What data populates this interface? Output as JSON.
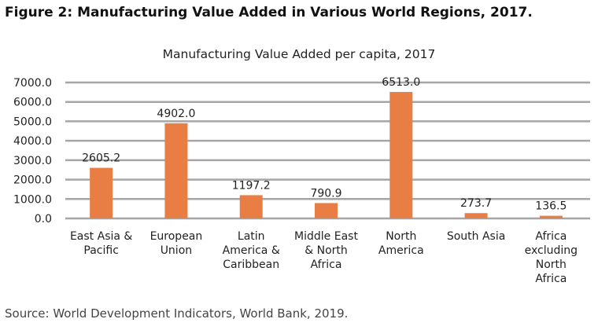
{
  "figure_title": "Figure 2: Manufacturing Value Added in Various World Regions, 2017.",
  "source": "Source: World Development Indicators, World Bank, 2019.",
  "chart_data": {
    "type": "bar",
    "title": "Manufacturing Value Added per capita, 2017",
    "categories": [
      [
        "East Asia &",
        "Pacific"
      ],
      [
        "European",
        "Union"
      ],
      [
        "Latin",
        "America &",
        "Caribbean"
      ],
      [
        "Middle East",
        "& North",
        "Africa"
      ],
      [
        "North",
        "America"
      ],
      [
        "South Asia"
      ],
      [
        "Africa",
        "excluding",
        "North",
        "Africa"
      ]
    ],
    "values": [
      2605.2,
      4902.0,
      1197.2,
      790.9,
      6513.0,
      273.7,
      136.5
    ],
    "data_labels": [
      "2605.2",
      "4902.0",
      "1197.2",
      "790.9",
      "6513.0",
      "273.7",
      "136.5"
    ],
    "yticks": [
      "0.0",
      "1000.0",
      "2000.0",
      "3000.0",
      "4000.0",
      "5000.0",
      "6000.0",
      "7000.0"
    ],
    "ylim": [
      0,
      7000
    ],
    "grid": true,
    "legend": "none",
    "bar_color": "#E97E45",
    "grid_color": "#A6A6A6"
  }
}
